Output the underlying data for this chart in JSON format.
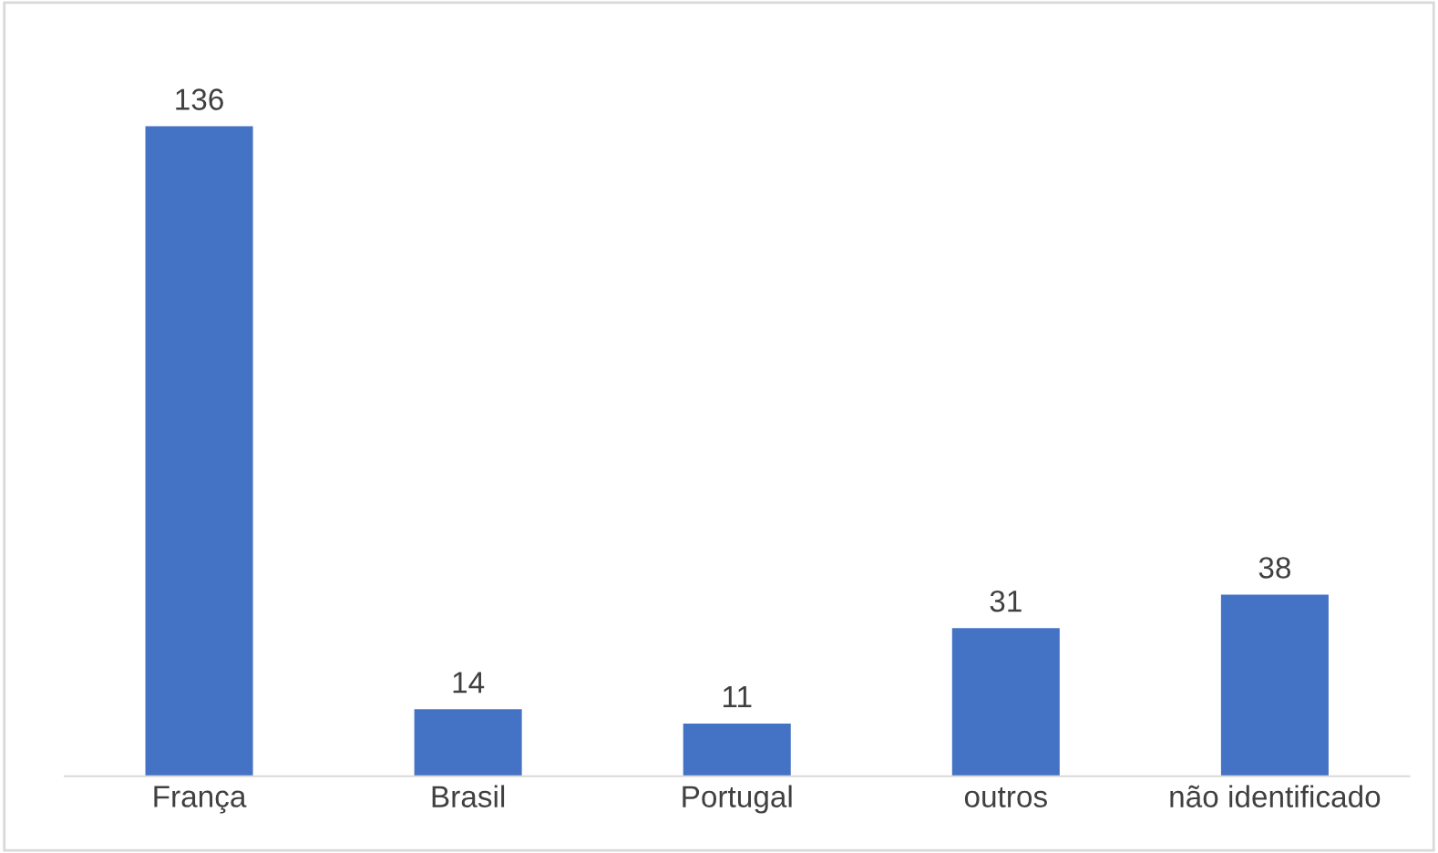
{
  "chart_data": {
    "type": "bar",
    "categories": [
      "França",
      "Brasil",
      "Portugal",
      "outros",
      "não identificado"
    ],
    "values": [
      136,
      14,
      11,
      31,
      38
    ],
    "color": "#4472c4",
    "data_labels": true,
    "tick_labels": "x",
    "grid": false,
    "legend": false
  }
}
